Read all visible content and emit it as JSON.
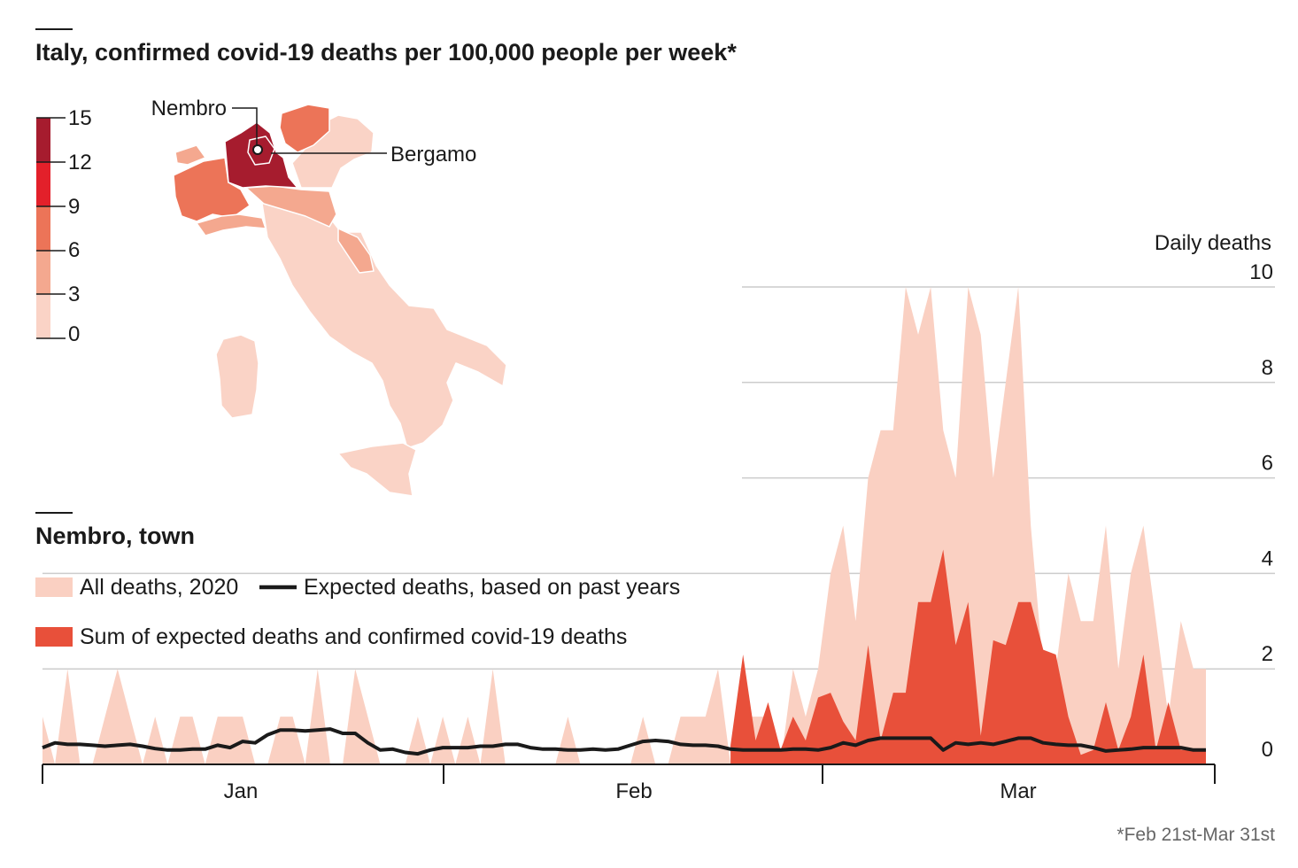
{
  "colors": {
    "all_deaths": "#fad0c2",
    "covid_sum": "#e8503a",
    "expected_line": "#1a1a1a",
    "grid": "#cccccc",
    "scale": [
      "#fad3c6",
      "#f4a88f",
      "#ec7458",
      "#e3202a",
      "#a61c2e"
    ],
    "land_background": "#fad3c6"
  },
  "map_panel": {
    "title": "Italy, confirmed covid-19 deaths per 100,000 people per week*",
    "scale_ticks": [
      "15",
      "12",
      "9",
      "6",
      "3",
      "0"
    ],
    "scale_values": [
      0,
      3,
      6,
      9,
      12,
      15
    ],
    "labels": {
      "nembro": "Nembro",
      "bergamo": "Bergamo"
    },
    "region_levels": [
      {
        "band": 5
      },
      {
        "band": 3
      },
      {
        "band": 2
      },
      {
        "band": 2
      },
      {
        "band": 3
      },
      {
        "band": 2
      },
      {
        "band": 2
      },
      {
        "band": 1
      },
      {
        "band": 1
      },
      {
        "band": 1
      }
    ]
  },
  "town_panel": {
    "title": "Nembro, town",
    "legend": {
      "all_deaths": "All deaths, 2020",
      "expected": "Expected deaths, based on past years",
      "covid_sum": "Sum of expected deaths and confirmed covid-19 deaths"
    }
  },
  "chart_data": {
    "type": "area",
    "ylabel": "Daily deaths",
    "ylim": [
      0,
      10
    ],
    "yticks": [
      0,
      2,
      4,
      6,
      8,
      10
    ],
    "xlim": [
      "2020-01-01",
      "2020-03-31"
    ],
    "x_month_labels": [
      "Jan",
      "Feb",
      "Mar"
    ],
    "grid": true,
    "series": [
      {
        "name": "All deaths, 2020",
        "kind": "area",
        "values": [
          1,
          0,
          2,
          0,
          0,
          1,
          2,
          1,
          0,
          1,
          0,
          1,
          1,
          0,
          1,
          1,
          1,
          0,
          0,
          1,
          1,
          0,
          2,
          0,
          0,
          2,
          1,
          0,
          0,
          0,
          1,
          0,
          1,
          0,
          1,
          0,
          2,
          0,
          0,
          0,
          0,
          0,
          1,
          0,
          0,
          0,
          0,
          0,
          1,
          0,
          0,
          1,
          1,
          1,
          2,
          0,
          1,
          1,
          1,
          0,
          2,
          1,
          2,
          4,
          5,
          3,
          6,
          7,
          7,
          10,
          9,
          10,
          7,
          6,
          10,
          9,
          6,
          8,
          10,
          5,
          2,
          2,
          4,
          3,
          3,
          5,
          2,
          4,
          5,
          3,
          1,
          3,
          2,
          2
        ]
      },
      {
        "name": "Expected deaths, based on past years",
        "kind": "line",
        "values": [
          0.35,
          0.45,
          0.42,
          0.42,
          0.4,
          0.38,
          0.4,
          0.42,
          0.38,
          0.33,
          0.3,
          0.3,
          0.32,
          0.32,
          0.4,
          0.35,
          0.48,
          0.45,
          0.62,
          0.72,
          0.72,
          0.7,
          0.72,
          0.74,
          0.65,
          0.65,
          0.45,
          0.3,
          0.32,
          0.25,
          0.22,
          0.3,
          0.35,
          0.35,
          0.35,
          0.38,
          0.38,
          0.42,
          0.42,
          0.35,
          0.32,
          0.32,
          0.3,
          0.3,
          0.32,
          0.3,
          0.32,
          0.4,
          0.48,
          0.5,
          0.48,
          0.42,
          0.4,
          0.4,
          0.38,
          0.32,
          0.3,
          0.3,
          0.3,
          0.3,
          0.32,
          0.32,
          0.3,
          0.35,
          0.45,
          0.4,
          0.5,
          0.55,
          0.55,
          0.55,
          0.55,
          0.55,
          0.3,
          0.45,
          0.42,
          0.45,
          0.42,
          0.48,
          0.55,
          0.55,
          0.45,
          0.42,
          0.4,
          0.4,
          0.35,
          0.28,
          0.3,
          0.32,
          0.35,
          0.35,
          0.35,
          0.35,
          0.3,
          0.3
        ]
      },
      {
        "name": "Sum of expected deaths and confirmed covid-19 deaths",
        "kind": "area",
        "values": [
          null,
          null,
          null,
          null,
          null,
          null,
          null,
          null,
          null,
          null,
          null,
          null,
          null,
          null,
          null,
          null,
          null,
          null,
          null,
          null,
          null,
          null,
          null,
          null,
          null,
          null,
          null,
          null,
          null,
          null,
          null,
          null,
          null,
          null,
          null,
          null,
          null,
          null,
          null,
          null,
          null,
          null,
          null,
          null,
          null,
          null,
          null,
          null,
          null,
          null,
          null,
          null,
          null,
          null,
          null,
          0.4,
          2.3,
          0.5,
          1.3,
          0.3,
          1.0,
          0.5,
          1.4,
          1.5,
          0.9,
          0.5,
          2.5,
          0.5,
          1.5,
          1.5,
          3.4,
          3.4,
          4.5,
          2.5,
          3.4,
          0.6,
          2.6,
          2.5,
          3.4,
          3.4,
          2.4,
          2.3,
          1.0,
          0.2,
          0.3,
          1.3,
          0.3,
          1.0,
          2.3,
          0.3,
          1.3,
          0.3,
          0.3,
          0.3
        ]
      }
    ]
  },
  "footnote": "*Feb 21st-Mar 31st"
}
